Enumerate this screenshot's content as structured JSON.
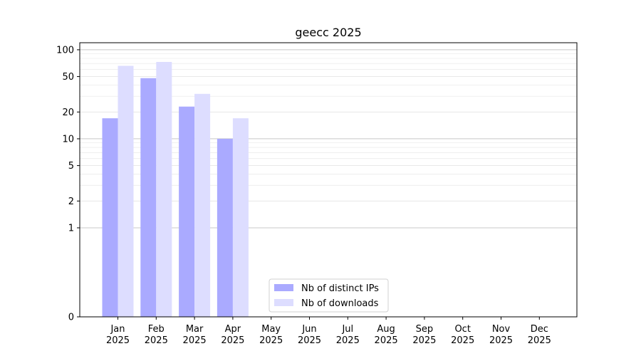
{
  "chart_data": {
    "type": "bar",
    "title": "geecc 2025",
    "xlabel": "",
    "ylabel": "",
    "scale": "symlog",
    "ylim": [
      0,
      120
    ],
    "yticks": [
      0,
      1,
      2,
      5,
      10,
      20,
      50,
      100
    ],
    "ytick_labels": [
      "0",
      "1",
      "2",
      "5",
      "10",
      "20",
      "50",
      "100"
    ],
    "categories": [
      "Jan\n2025",
      "Feb\n2025",
      "Mar\n2025",
      "Apr\n2025",
      "May\n2025",
      "Jun\n2025",
      "Jul\n2025",
      "Aug\n2025",
      "Sep\n2025",
      "Oct\n2025",
      "Nov\n2025",
      "Dec\n2025"
    ],
    "series": [
      {
        "name": "Nb of distinct IPs",
        "values": [
          17,
          48,
          23,
          10,
          0,
          0,
          0,
          0,
          0,
          0,
          0,
          0
        ],
        "color": "#aaaaff"
      },
      {
        "name": "Nb of downloads",
        "values": [
          66,
          73,
          32,
          17,
          0,
          0,
          0,
          0,
          0,
          0,
          0,
          0
        ],
        "color": "#ddddff"
      }
    ],
    "grid": true,
    "legend_position": "lower-center"
  }
}
